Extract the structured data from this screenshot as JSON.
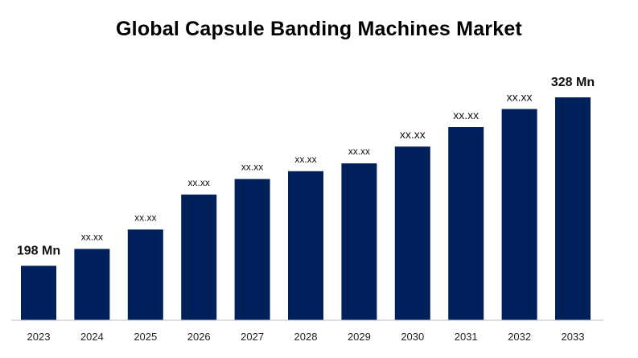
{
  "chart_data": {
    "type": "bar",
    "title": "Global Capsule Banding Machines Market",
    "xlabel": "",
    "ylabel": "",
    "categories": [
      "2023",
      "2024",
      "2025",
      "2026",
      "2027",
      "2028",
      "2029",
      "2030",
      "2031",
      "2032",
      "2033"
    ],
    "values": [
      198,
      211,
      226,
      253,
      265,
      271,
      277,
      290,
      305,
      319,
      328
    ],
    "data_labels": [
      "198 Mn",
      "xx.xx",
      "xx.xx",
      "xx.xx",
      "xx.xx",
      "xx.xx",
      "xx.xx",
      "xx.xx",
      "xx.xx",
      "xx.xx",
      "328 Mn"
    ],
    "ylim": [
      156,
      340
    ],
    "grid": false,
    "legend": "none",
    "bar_color": "#00205b",
    "axis_color": "#bfbfbf"
  }
}
